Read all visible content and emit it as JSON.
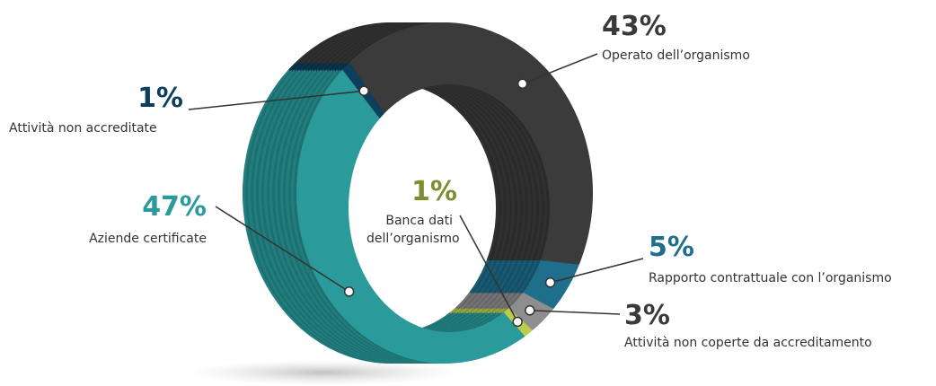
{
  "chart_data": {
    "type": "pie",
    "categories": [
      "Operato dell’organismo",
      "Rapporto contrattuale con l’organismo",
      "Attività non coperte da accreditamento",
      "Banca dati dell’organismo",
      "Aziende certificate",
      "Attività non accreditate"
    ],
    "values": [
      43,
      5,
      3,
      1,
      47,
      1
    ],
    "value_labels": [
      "43%",
      "5%",
      "3%",
      "1%",
      "47%",
      "1%"
    ],
    "colors": [
      "#3b3b3b",
      "#1f6e8c",
      "#8e8e8e",
      "#b9cc4e",
      "#2a9a9a",
      "#0e3e5e"
    ],
    "label_colors": [
      "#3a3a3a",
      "#1f6e8c",
      "#3a3a3a",
      "#7d8d31",
      "#2a9a9a",
      "#0e3e5e"
    ]
  }
}
